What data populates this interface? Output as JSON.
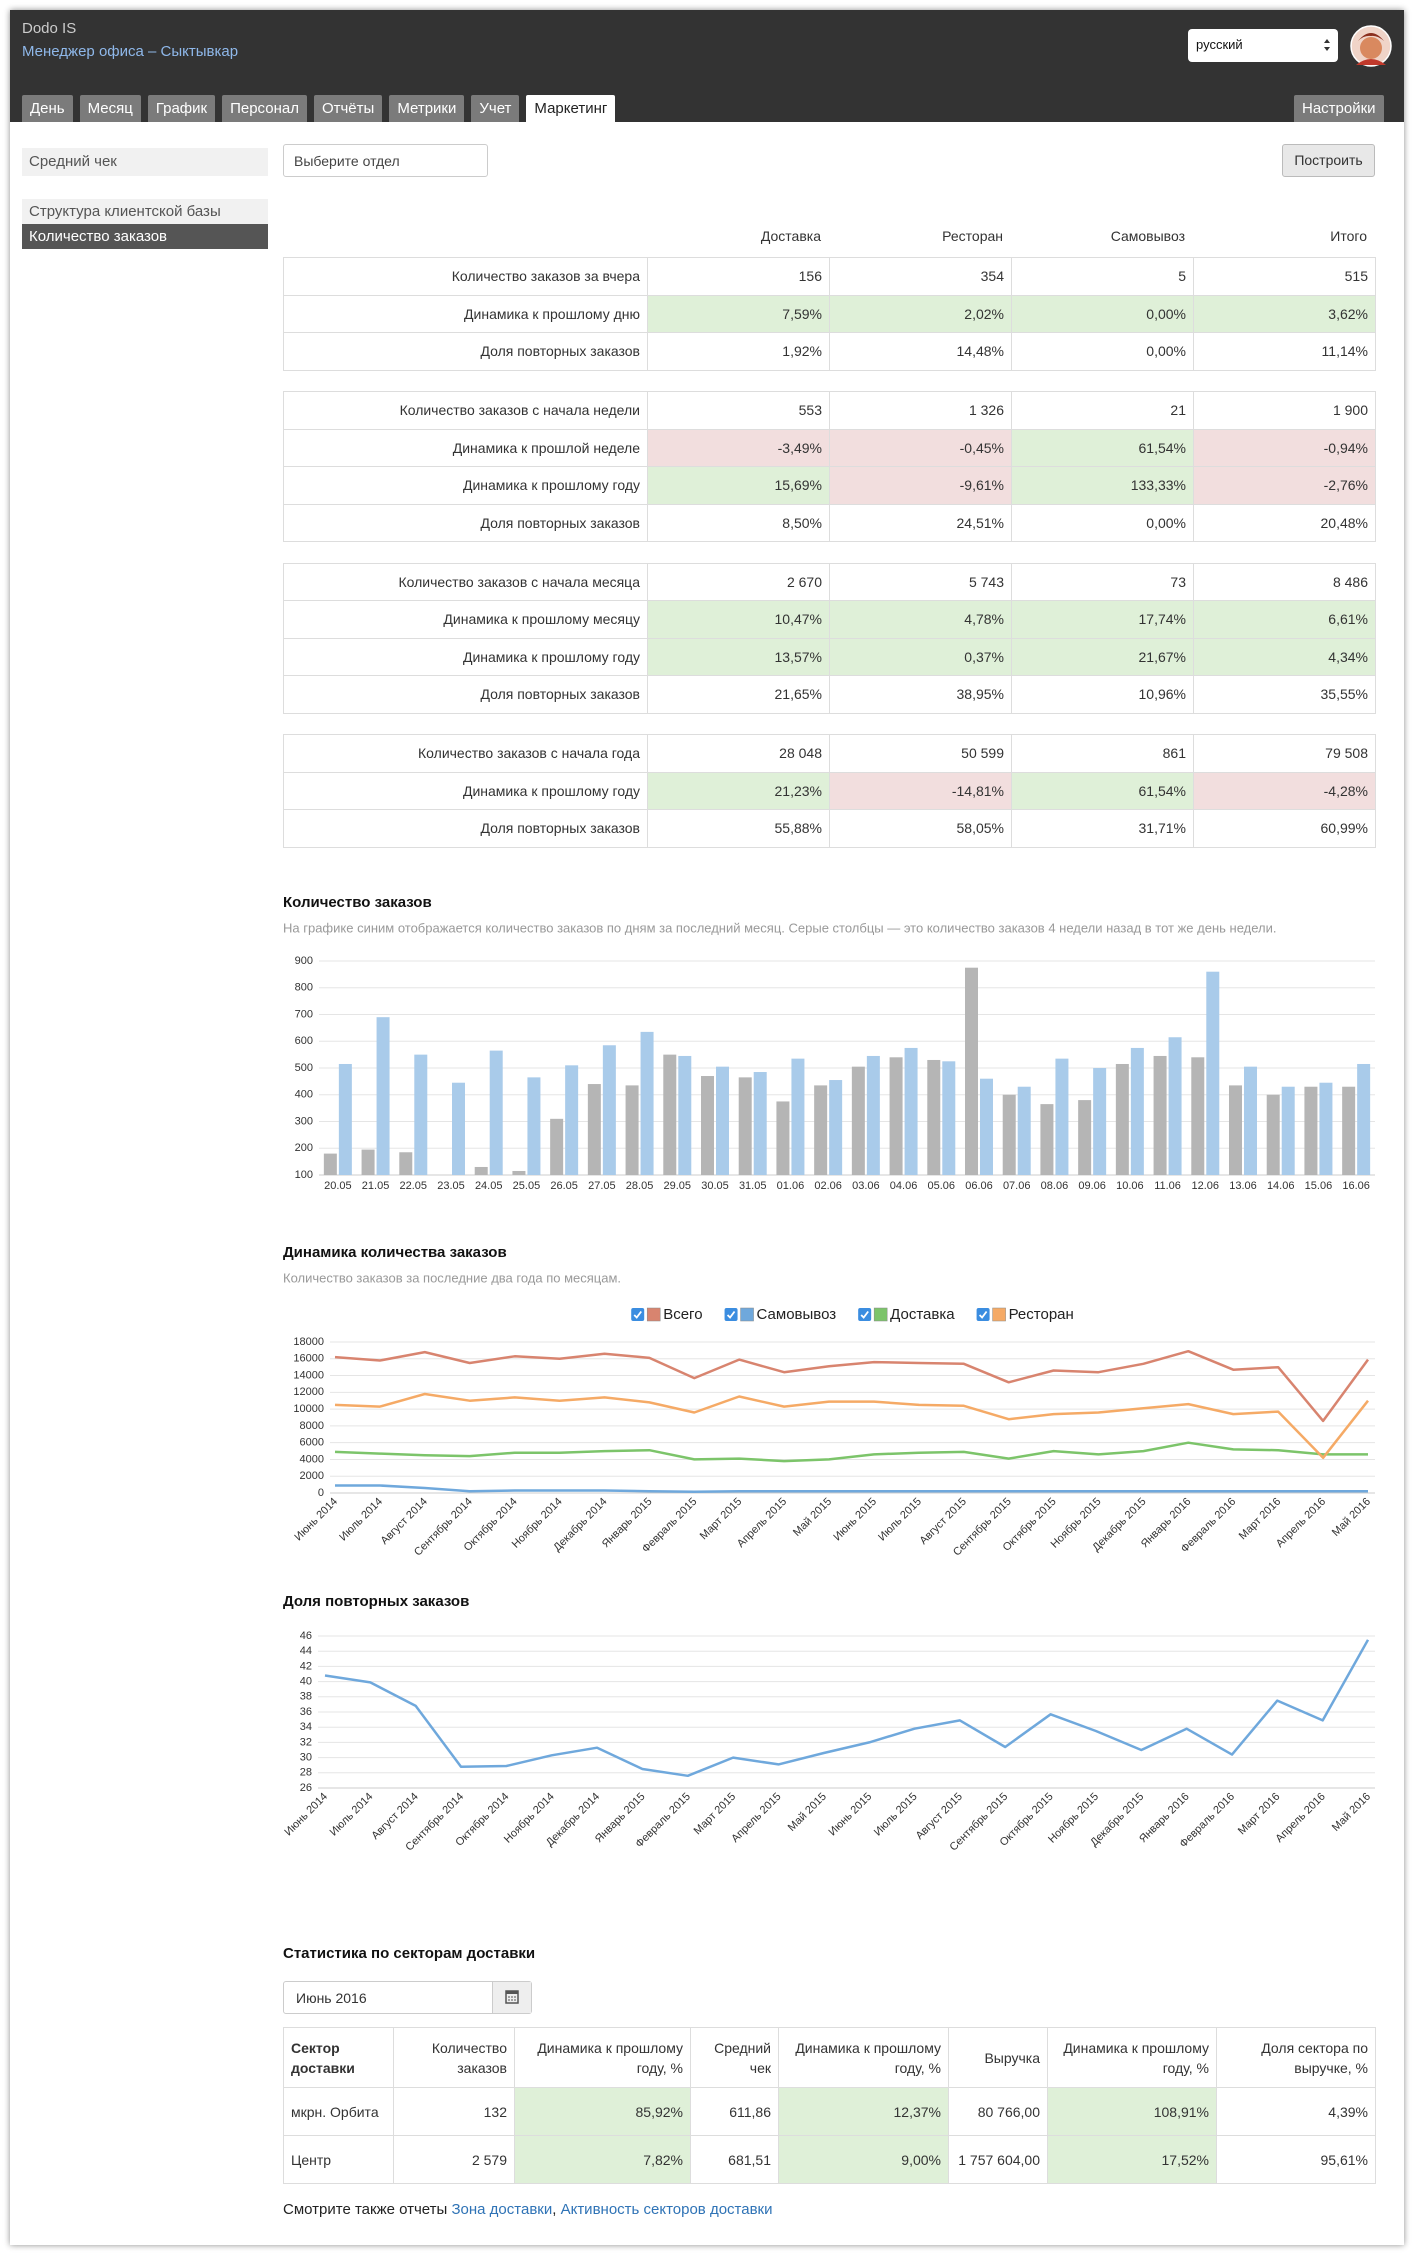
{
  "header": {
    "brand": "Dodo IS",
    "subtitle": "Менеджер офиса – Сыктывкар",
    "language": "русский"
  },
  "tabs": {
    "items": [
      "День",
      "Месяц",
      "График",
      "Персонал",
      "Отчёты",
      "Метрики",
      "Учет",
      "Маркетинг"
    ],
    "active": 7,
    "settings": "Настройки"
  },
  "sidebar": {
    "items": [
      "Средний чек",
      "Структура клиентской базы",
      "Количество заказов"
    ],
    "active": 2
  },
  "filter": {
    "placeholder": "Выберите отдел",
    "button": "Построить"
  },
  "summary": {
    "columns": [
      "Доставка",
      "Ресторан",
      "Самовывоз",
      "Итого"
    ],
    "groups": [
      {
        "rows": [
          {
            "label": "Количество заказов за вчера",
            "cells": [
              "156",
              "354",
              "5",
              "515"
            ]
          },
          {
            "label": "Динамика к прошлому дню",
            "cells": [
              "7,59%",
              "2,02%",
              "0,00%",
              "3,62%"
            ],
            "fills": [
              "#dff0d8",
              "#dff0d8",
              "#dff0d8",
              "#dff0d8"
            ]
          },
          {
            "label": "Доля повторных заказов",
            "cells": [
              "1,92%",
              "14,48%",
              "0,00%",
              "11,14%"
            ]
          }
        ]
      },
      {
        "rows": [
          {
            "label": "Количество заказов с начала недели",
            "cells": [
              "553",
              "1 326",
              "21",
              "1 900"
            ]
          },
          {
            "label": "Динамика к прошлой неделе",
            "cells": [
              "-3,49%",
              "-0,45%",
              "61,54%",
              "-0,94%"
            ],
            "fills": [
              "#f2dede",
              "#f2dede",
              "#dff0d8",
              "#f2dede"
            ]
          },
          {
            "label": "Динамика к прошлому году",
            "cells": [
              "15,69%",
              "-9,61%",
              "133,33%",
              "-2,76%"
            ],
            "fills": [
              "#dff0d8",
              "#f2dede",
              "#dff0d8",
              "#f2dede"
            ]
          },
          {
            "label": "Доля повторных заказов",
            "cells": [
              "8,50%",
              "24,51%",
              "0,00%",
              "20,48%"
            ]
          }
        ]
      },
      {
        "rows": [
          {
            "label": "Количество заказов с начала месяца",
            "cells": [
              "2 670",
              "5 743",
              "73",
              "8 486"
            ]
          },
          {
            "label": "Динамика к прошлому месяцу",
            "cells": [
              "10,47%",
              "4,78%",
              "17,74%",
              "6,61%"
            ],
            "fills": [
              "#dff0d8",
              "#dff0d8",
              "#dff0d8",
              "#dff0d8"
            ]
          },
          {
            "label": "Динамика к прошлому году",
            "cells": [
              "13,57%",
              "0,37%",
              "21,67%",
              "4,34%"
            ],
            "fills": [
              "#dff0d8",
              "#dff0d8",
              "#dff0d8",
              "#dff0d8"
            ]
          },
          {
            "label": "Доля повторных заказов",
            "cells": [
              "21,65%",
              "38,95%",
              "10,96%",
              "35,55%"
            ]
          }
        ]
      },
      {
        "rows": [
          {
            "label": "Количество заказов с начала года",
            "cells": [
              "28 048",
              "50 599",
              "861",
              "79 508"
            ]
          },
          {
            "label": "Динамика к прошлому году",
            "cells": [
              "21,23%",
              "-14,81%",
              "61,54%",
              "-4,28%"
            ],
            "fills": [
              "#dff0d8",
              "#f2dede",
              "#dff0d8",
              "#f2dede"
            ]
          },
          {
            "label": "Доля повторных заказов",
            "cells": [
              "55,88%",
              "58,05%",
              "31,71%",
              "60,99%"
            ]
          }
        ]
      }
    ]
  },
  "chart_data": [
    {
      "type": "bar",
      "title": "Количество заказов",
      "subtitle": "На графике синим отображается количество заказов по дням за последний месяц. Серые столбцы — это количество заказов 4 недели назад в тот же день недели.",
      "categories": [
        "20.05",
        "21.05",
        "22.05",
        "23.05",
        "24.05",
        "25.05",
        "26.05",
        "27.05",
        "28.05",
        "29.05",
        "30.05",
        "31.05",
        "01.06",
        "02.06",
        "03.06",
        "04.06",
        "05.06",
        "06.06",
        "07.06",
        "08.06",
        "09.06",
        "10.06",
        "11.06",
        "12.06",
        "13.06",
        "14.06",
        "15.06",
        "16.06"
      ],
      "series": [
        {
          "color": "#b5b5b5",
          "values": [
            180,
            195,
            185,
            null,
            130,
            115,
            310,
            440,
            435,
            550,
            470,
            465,
            375,
            435,
            505,
            540,
            530,
            875,
            400,
            365,
            380,
            515,
            545,
            540,
            435,
            400,
            430,
            430
          ]
        },
        {
          "color": "#a9cbea",
          "values": [
            515,
            690,
            550,
            445,
            565,
            465,
            510,
            585,
            635,
            545,
            505,
            485,
            535,
            455,
            545,
            575,
            525,
            460,
            430,
            535,
            500,
            575,
            615,
            860,
            505,
            430,
            445,
            515
          ]
        }
      ],
      "ylim": [
        100,
        900
      ],
      "yticks": [
        100,
        200,
        300,
        400,
        500,
        600,
        700,
        800,
        900
      ],
      "grid": true
    },
    {
      "type": "line",
      "title": "Динамика количества заказов",
      "subtitle": "Количество заказов за последние два года по месяцам.",
      "categories": [
        "Июнь 2014",
        "Июль 2014",
        "Август 2014",
        "Сентябрь 2014",
        "Октябрь 2014",
        "Ноябрь 2014",
        "Декабрь 2014",
        "Январь 2015",
        "Февраль 2015",
        "Март 2015",
        "Апрель 2015",
        "Май 2015",
        "Июнь 2015",
        "Июль 2015",
        "Август 2015",
        "Сентябрь 2015",
        "Октябрь 2015",
        "Ноябрь 2015",
        "Декабрь 2015",
        "Январь 2016",
        "Февраль 2016",
        "Март 2016",
        "Апрель 2016",
        "Май 2016"
      ],
      "series": [
        {
          "name": "Всего",
          "color": "#d8846f",
          "values": [
            16200,
            15800,
            16800,
            15500,
            16300,
            16000,
            16600,
            16100,
            13700,
            15900,
            14400,
            15100,
            15600,
            15500,
            15400,
            13200,
            14600,
            14400,
            15400,
            16900,
            14700,
            15000,
            8600,
            15900
          ]
        },
        {
          "name": "Самовывоз",
          "color": "#6fa8dc",
          "values": [
            900,
            900,
            600,
            200,
            300,
            300,
            300,
            200,
            150,
            200,
            200,
            200,
            200,
            200,
            200,
            200,
            200,
            200,
            200,
            200,
            200,
            200,
            200,
            200
          ]
        },
        {
          "name": "Доставка",
          "color": "#7cc46a",
          "values": [
            4900,
            4700,
            4500,
            4400,
            4800,
            4800,
            5000,
            5100,
            4000,
            4100,
            3800,
            4000,
            4600,
            4800,
            4900,
            4100,
            5000,
            4600,
            5000,
            6000,
            5200,
            5100,
            4600,
            4600
          ]
        },
        {
          "name": "Ресторан",
          "color": "#f5aa66",
          "values": [
            10500,
            10300,
            11800,
            11000,
            11400,
            11000,
            11400,
            10800,
            9600,
            11500,
            10300,
            10900,
            10900,
            10500,
            10400,
            8800,
            9400,
            9600,
            10100,
            10600,
            9400,
            9700,
            4200,
            11000
          ]
        }
      ],
      "ylim": [
        0,
        18000
      ],
      "yticks": [
        0,
        2000,
        4000,
        6000,
        8000,
        10000,
        12000,
        14000,
        16000,
        18000
      ],
      "grid": true,
      "legend": "top"
    },
    {
      "type": "line",
      "title": "Доля повторных заказов",
      "categories": [
        "Июнь 2014",
        "Июль 2014",
        "Август 2014",
        "Сентябрь 2014",
        "Октябрь 2014",
        "Ноябрь 2014",
        "Декабрь 2014",
        "Январь 2015",
        "Февраль 2015",
        "Март 2015",
        "Апрель 2015",
        "Май 2015",
        "Июнь 2015",
        "Июль 2015",
        "Август 2015",
        "Сентябрь 2015",
        "Октябрь 2015",
        "Ноябрь 2015",
        "Декабрь 2015",
        "Январь 2016",
        "Февраль 2016",
        "Март 2016",
        "Апрель 2016",
        "Май 2016"
      ],
      "series": [
        {
          "color": "#6fa8dc",
          "values": [
            40.8,
            39.9,
            36.8,
            28.8,
            28.9,
            30.3,
            31.3,
            28.5,
            27.6,
            30.0,
            29.1,
            30.6,
            32.0,
            33.8,
            34.9,
            31.4,
            35.7,
            33.5,
            31.0,
            33.8,
            30.4,
            37.5,
            34.9,
            45.5
          ]
        }
      ],
      "ylim": [
        26,
        46
      ],
      "yticks": [
        26,
        28,
        30,
        32,
        34,
        36,
        38,
        40,
        42,
        44,
        46
      ],
      "grid": true
    }
  ],
  "sectors": {
    "title": "Статистика по секторам доставки",
    "month": "Июнь 2016",
    "columns": [
      "Сектор доставки",
      "Количество заказов",
      "Динамика к прошлому году, %",
      "Средний чек",
      "Динамика к прошлому году, %",
      "Выручка",
      "Динамика к прошлому году, %",
      "Доля сектора по выручке, %"
    ],
    "column_fills": [
      null,
      null,
      "#dff0d8",
      null,
      "#dff0d8",
      null,
      "#dff0d8",
      null
    ],
    "rows": [
      [
        "мкрн. Орбита",
        "132",
        "85,92%",
        "611,86",
        "12,37%",
        "80 766,00",
        "108,91%",
        "4,39%"
      ],
      [
        "Центр",
        "2 579",
        "7,82%",
        "681,51",
        "9,00%",
        "1 757 604,00",
        "17,52%",
        "95,61%"
      ]
    ]
  },
  "see_also": {
    "text": "Смотрите также отчеты",
    "links": [
      "Зона доставки",
      "Активность секторов доставки"
    ],
    "separator": ","
  }
}
